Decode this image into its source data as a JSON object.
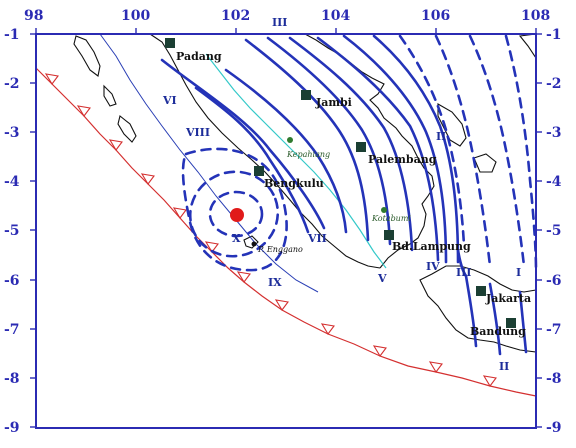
{
  "map": {
    "lon_ticks": [
      "98",
      "100",
      "102",
      "104",
      "106",
      "108"
    ],
    "lat_ticks": [
      "-1",
      "-2",
      "-3",
      "-4",
      "-5",
      "-6",
      "-7",
      "-8",
      "-9"
    ],
    "cities": [
      {
        "name": "Padang"
      },
      {
        "name": "Jambi"
      },
      {
        "name": "Palembang"
      },
      {
        "name": "Bengkulu"
      },
      {
        "name": "Bd.Lampung"
      },
      {
        "name": "Jakarta"
      },
      {
        "name": "Bandung"
      }
    ],
    "small_places": [
      {
        "name": "Kepahiang"
      },
      {
        "name": "Kotabumi"
      },
      {
        "name": "P. Enggano"
      }
    ],
    "intensity_labels": [
      "III",
      "VI",
      "VIII",
      "II",
      "IV",
      "III",
      "I",
      "II",
      "V",
      "VII",
      "X",
      "IX"
    ],
    "colors": {
      "frame": "#2b2bb3",
      "isoseismal": "#2433b8",
      "trench": "#d43030",
      "epicenter": "#e11a1a",
      "city_marker": "#1b3f33"
    }
  }
}
